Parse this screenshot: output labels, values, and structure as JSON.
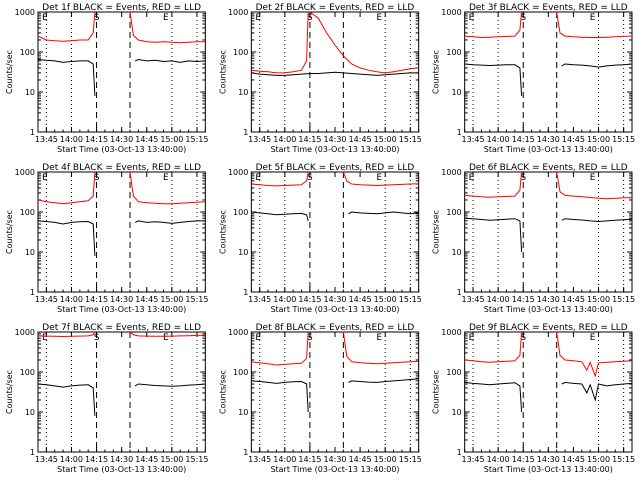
{
  "colors": {
    "events": "#000000",
    "lld": "#ff0000",
    "background": "#ffffff"
  },
  "x_tick_labels": [
    "13:45",
    "14:00",
    "14:15",
    "14:30",
    "14:45",
    "15:00",
    "15:15"
  ],
  "y_tick_labels": [
    "1",
    "10",
    "100",
    "1000"
  ],
  "flag_labels": {
    "start": "E",
    "mid": "S",
    "end": "E"
  },
  "chart_data": [
    {
      "type": "line",
      "title": "Det 1f BLACK = Events, RED = LLD",
      "ylabel": "Counts/sec",
      "xlabel": "Start Time (03-Oct-13 13:40:00)",
      "x_unit": "minutes after 13:40",
      "xlim": [
        0,
        100
      ],
      "ylim": [
        1,
        1000
      ],
      "y_scale": "log",
      "vlines_dotted": [
        5,
        20,
        80,
        95
      ],
      "vlines_dashed": [
        35,
        55
      ],
      "series": [
        {
          "name": "Events",
          "color": "black",
          "x": [
            0,
            5,
            10,
            15,
            20,
            25,
            30,
            33,
            34,
            35,
            55,
            58,
            60,
            65,
            70,
            75,
            80,
            85,
            90,
            95,
            100
          ],
          "y": [
            65,
            62,
            60,
            55,
            58,
            60,
            60,
            50,
            8,
            null,
            null,
            60,
            65,
            60,
            62,
            58,
            60,
            55,
            60,
            58,
            60
          ]
        },
        {
          "name": "LLD",
          "color": "red",
          "x": [
            0,
            5,
            10,
            15,
            20,
            25,
            30,
            33,
            34,
            35,
            55,
            57,
            60,
            65,
            70,
            75,
            80,
            85,
            90,
            95,
            100
          ],
          "y": [
            250,
            200,
            190,
            185,
            190,
            200,
            200,
            300,
            1000,
            null,
            1000,
            260,
            200,
            180,
            175,
            180,
            175,
            170,
            175,
            180,
            180
          ]
        }
      ]
    },
    {
      "type": "line",
      "title": "Det 2f BLACK = Events, RED = LLD",
      "ylabel": "Counts/sec",
      "xlabel": "Start Time (03-Oct-13 13:40:00)",
      "x_unit": "minutes after 13:40",
      "xlim": [
        0,
        100
      ],
      "ylim": [
        1,
        1000
      ],
      "y_scale": "log",
      "vlines_dotted": [
        5,
        20,
        80,
        95
      ],
      "vlines_dashed": [
        35,
        55
      ],
      "series": [
        {
          "name": "Events",
          "color": "black",
          "x": [
            0,
            5,
            10,
            15,
            20,
            25,
            30,
            35,
            40,
            45,
            50,
            55,
            60,
            65,
            70,
            75,
            80,
            85,
            90,
            95,
            100
          ],
          "y": [
            30,
            28,
            27,
            26,
            26,
            27,
            28,
            29,
            29,
            30,
            31,
            30,
            29,
            28,
            27,
            26,
            27,
            28,
            29,
            30,
            30
          ]
        },
        {
          "name": "LLD",
          "color": "red",
          "x": [
            0,
            5,
            10,
            15,
            20,
            25,
            30,
            33,
            34,
            35,
            40,
            45,
            50,
            55,
            60,
            65,
            70,
            75,
            80,
            85,
            90,
            95,
            100
          ],
          "y": [
            35,
            33,
            32,
            30,
            30,
            32,
            35,
            60,
            1000,
            1000,
            700,
            300,
            150,
            80,
            50,
            40,
            35,
            32,
            30,
            32,
            35,
            38,
            40
          ]
        }
      ]
    },
    {
      "type": "line",
      "title": "Det 3f BLACK = Events, RED = LLD",
      "ylabel": "Counts/sec",
      "xlabel": "Start Time (03-Oct-13 13:40:00)",
      "x_unit": "minutes after 13:40",
      "xlim": [
        0,
        100
      ],
      "ylim": [
        1,
        1000
      ],
      "y_scale": "log",
      "vlines_dotted": [
        5,
        20,
        80,
        95
      ],
      "vlines_dashed": [
        35,
        55
      ],
      "series": [
        {
          "name": "Events",
          "color": "black",
          "x": [
            0,
            5,
            10,
            15,
            20,
            25,
            30,
            33,
            34,
            35,
            55,
            58,
            60,
            65,
            70,
            75,
            80,
            85,
            90,
            95,
            100
          ],
          "y": [
            50,
            48,
            47,
            46,
            47,
            48,
            48,
            40,
            8,
            null,
            null,
            45,
            50,
            48,
            47,
            45,
            42,
            45,
            47,
            48,
            50
          ]
        },
        {
          "name": "LLD",
          "color": "red",
          "x": [
            0,
            5,
            10,
            15,
            20,
            25,
            30,
            33,
            34,
            35,
            55,
            57,
            60,
            65,
            70,
            75,
            80,
            85,
            90,
            95,
            100
          ],
          "y": [
            250,
            240,
            230,
            235,
            240,
            245,
            250,
            350,
            1000,
            null,
            1000,
            300,
            250,
            240,
            235,
            230,
            230,
            235,
            240,
            245,
            250
          ]
        }
      ]
    },
    {
      "type": "line",
      "title": "Det 4f BLACK = Events, RED = LLD",
      "ylabel": "Counts/sec",
      "xlabel": "Start Time (03-Oct-13 13:40:00)",
      "x_unit": "minutes after 13:40",
      "xlim": [
        0,
        100
      ],
      "ylim": [
        1,
        1000
      ],
      "y_scale": "log",
      "vlines_dotted": [
        5,
        20,
        80,
        95
      ],
      "vlines_dashed": [
        35,
        55
      ],
      "series": [
        {
          "name": "Events",
          "color": "black",
          "x": [
            0,
            5,
            10,
            15,
            20,
            25,
            30,
            33,
            34,
            35,
            55,
            58,
            60,
            65,
            70,
            75,
            80,
            85,
            90,
            95,
            100
          ],
          "y": [
            60,
            58,
            55,
            50,
            55,
            57,
            58,
            50,
            8,
            null,
            null,
            55,
            60,
            55,
            57,
            55,
            52,
            55,
            58,
            60,
            60
          ]
        },
        {
          "name": "LLD",
          "color": "red",
          "x": [
            0,
            5,
            10,
            15,
            20,
            25,
            30,
            33,
            34,
            35,
            55,
            57,
            60,
            65,
            70,
            75,
            80,
            85,
            90,
            95,
            100
          ],
          "y": [
            200,
            180,
            170,
            160,
            170,
            180,
            190,
            250,
            1000,
            null,
            1000,
            250,
            180,
            170,
            165,
            160,
            160,
            165,
            170,
            175,
            180
          ]
        }
      ]
    },
    {
      "type": "line",
      "title": "Det 5f BLACK = Events, RED = LLD",
      "ylabel": "Counts/sec",
      "xlabel": "Start Time (03-Oct-13 13:40:00)",
      "x_unit": "minutes after 13:40",
      "xlim": [
        0,
        100
      ],
      "ylim": [
        1,
        1000
      ],
      "y_scale": "log",
      "vlines_dotted": [
        5,
        20,
        80,
        95
      ],
      "vlines_dashed": [
        35,
        55
      ],
      "series": [
        {
          "name": "Events",
          "color": "black",
          "x": [
            0,
            5,
            10,
            15,
            20,
            25,
            30,
            33,
            34,
            35,
            55,
            58,
            60,
            65,
            70,
            75,
            80,
            85,
            90,
            95,
            100
          ],
          "y": [
            100,
            95,
            90,
            85,
            88,
            90,
            92,
            85,
            60,
            null,
            null,
            90,
            100,
            95,
            92,
            90,
            95,
            100,
            95,
            90,
            95
          ]
        },
        {
          "name": "LLD",
          "color": "red",
          "x": [
            0,
            5,
            10,
            15,
            20,
            25,
            30,
            33,
            34,
            35,
            55,
            57,
            60,
            65,
            70,
            75,
            80,
            85,
            90,
            95,
            100
          ],
          "y": [
            500,
            480,
            460,
            450,
            460,
            470,
            480,
            600,
            1000,
            null,
            1000,
            600,
            500,
            480,
            470,
            460,
            470,
            480,
            490,
            500,
            510
          ]
        }
      ]
    },
    {
      "type": "line",
      "title": "Det 6f BLACK = Events, RED = LLD",
      "ylabel": "Counts/sec",
      "xlabel": "Start Time (03-Oct-13 13:40:00)",
      "x_unit": "minutes after 13:40",
      "xlim": [
        0,
        100
      ],
      "ylim": [
        1,
        1000
      ],
      "y_scale": "log",
      "vlines_dotted": [
        5,
        20,
        80,
        95
      ],
      "vlines_dashed": [
        35,
        55
      ],
      "series": [
        {
          "name": "Events",
          "color": "black",
          "x": [
            0,
            5,
            10,
            15,
            20,
            25,
            30,
            33,
            34,
            35,
            55,
            58,
            60,
            65,
            70,
            75,
            80,
            85,
            90,
            95,
            100
          ],
          "y": [
            70,
            68,
            65,
            62,
            64,
            66,
            68,
            60,
            10,
            null,
            null,
            62,
            68,
            65,
            63,
            60,
            58,
            60,
            62,
            64,
            66
          ]
        },
        {
          "name": "LLD",
          "color": "red",
          "x": [
            0,
            5,
            10,
            15,
            20,
            25,
            30,
            33,
            34,
            35,
            55,
            57,
            60,
            65,
            70,
            75,
            80,
            85,
            90,
            95,
            100
          ],
          "y": [
            260,
            250,
            240,
            235,
            240,
            245,
            250,
            350,
            1000,
            null,
            1000,
            320,
            260,
            250,
            240,
            230,
            220,
            215,
            220,
            225,
            230
          ]
        }
      ]
    },
    {
      "type": "line",
      "title": "Det 7f BLACK = Events, RED = LLD",
      "ylabel": "Counts/sec",
      "xlabel": "Start Time (03-Oct-13 13:40:00)",
      "x_unit": "minutes after 13:40",
      "xlim": [
        0,
        100
      ],
      "ylim": [
        1,
        1000
      ],
      "y_scale": "log",
      "vlines_dotted": [
        5,
        20,
        80,
        95
      ],
      "vlines_dashed": [
        35,
        55
      ],
      "series": [
        {
          "name": "Events",
          "color": "black",
          "x": [
            0,
            5,
            10,
            15,
            20,
            25,
            30,
            33,
            34,
            35,
            55,
            58,
            60,
            65,
            70,
            75,
            80,
            85,
            90,
            95,
            100
          ],
          "y": [
            50,
            48,
            45,
            42,
            45,
            47,
            48,
            40,
            8,
            null,
            null,
            45,
            50,
            48,
            46,
            45,
            44,
            45,
            47,
            48,
            50
          ]
        },
        {
          "name": "LLD",
          "color": "red",
          "x": [
            0,
            5,
            10,
            15,
            20,
            25,
            30,
            33,
            34,
            35,
            55,
            57,
            60,
            65,
            70,
            75,
            80,
            85,
            90,
            95,
            100
          ],
          "y": [
            800,
            790,
            780,
            770,
            780,
            790,
            800,
            850,
            1000,
            null,
            1000,
            850,
            800,
            790,
            780,
            780,
            790,
            800,
            810,
            820,
            830
          ]
        }
      ]
    },
    {
      "type": "line",
      "title": "Det 8f BLACK = Events, RED = LLD",
      "ylabel": "Counts/sec",
      "xlabel": "Start Time (03-Oct-13 13:40:00)",
      "x_unit": "minutes after 13:40",
      "xlim": [
        0,
        100
      ],
      "ylim": [
        1,
        1000
      ],
      "y_scale": "log",
      "vlines_dotted": [
        5,
        20,
        80,
        95
      ],
      "vlines_dashed": [
        35,
        55
      ],
      "series": [
        {
          "name": "Events",
          "color": "black",
          "x": [
            0,
            5,
            10,
            15,
            20,
            25,
            30,
            33,
            34,
            35,
            55,
            58,
            60,
            65,
            70,
            75,
            80,
            85,
            90,
            95,
            100
          ],
          "y": [
            60,
            58,
            55,
            52,
            55,
            57,
            58,
            50,
            10,
            null,
            null,
            55,
            60,
            58,
            56,
            55,
            58,
            60,
            62,
            65,
            68
          ]
        },
        {
          "name": "LLD",
          "color": "red",
          "x": [
            0,
            5,
            10,
            15,
            20,
            25,
            30,
            33,
            34,
            35,
            55,
            57,
            60,
            65,
            70,
            75,
            80,
            85,
            90,
            95,
            100
          ],
          "y": [
            180,
            170,
            160,
            150,
            155,
            160,
            165,
            220,
            1000,
            null,
            1000,
            250,
            180,
            170,
            165,
            160,
            165,
            170,
            175,
            180,
            185
          ]
        }
      ]
    },
    {
      "type": "line",
      "title": "Det 9f BLACK = Events, RED = LLD",
      "ylabel": "Counts/sec",
      "xlabel": "Start Time (03-Oct-13 13:40:00)",
      "x_unit": "minutes after 13:40",
      "xlim": [
        0,
        100
      ],
      "ylim": [
        1,
        1000
      ],
      "y_scale": "log",
      "vlines_dotted": [
        5,
        20,
        80,
        95
      ],
      "vlines_dashed": [
        35,
        55
      ],
      "series": [
        {
          "name": "Events",
          "color": "black",
          "x": [
            0,
            5,
            10,
            15,
            20,
            25,
            30,
            33,
            34,
            35,
            55,
            58,
            60,
            65,
            70,
            73,
            75,
            78,
            80,
            85,
            90,
            95,
            100
          ],
          "y": [
            55,
            52,
            50,
            48,
            50,
            52,
            54,
            45,
            10,
            null,
            null,
            50,
            55,
            52,
            50,
            30,
            48,
            20,
            50,
            45,
            48,
            50,
            52
          ]
        },
        {
          "name": "LLD",
          "color": "red",
          "x": [
            0,
            5,
            10,
            15,
            20,
            25,
            30,
            33,
            34,
            35,
            55,
            57,
            60,
            65,
            70,
            73,
            75,
            78,
            80,
            85,
            90,
            95,
            100
          ],
          "y": [
            200,
            190,
            180,
            175,
            180,
            185,
            190,
            260,
            1000,
            null,
            1000,
            260,
            200,
            190,
            180,
            110,
            175,
            80,
            170,
            175,
            180,
            185,
            190
          ]
        }
      ]
    }
  ]
}
